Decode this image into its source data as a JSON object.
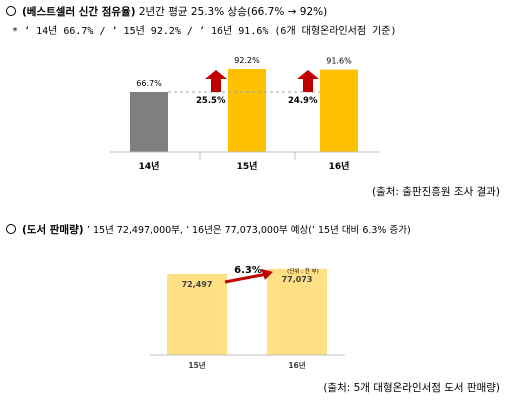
{
  "section1": {
    "heading": "(베스트셀러 신간 점유율)",
    "summary": "2년간 평균 25.3% 상승(66.7% → 92%)",
    "note": "* ’ 14년 66.7% / ’ 15년 92.2% / ’ 16년 91.6% (6개 대형온라인서점 기준)",
    "source": "(출처: 출판진흥원 조사 결과)"
  },
  "section2": {
    "heading": "(도서 판매량)",
    "summary": "’ 15년 72,497,000부, ’ 16년은 77,073,000부 예상(’ 15년 대비 6.3% 증가)",
    "source": "(출처: 5개 대형온라인서점 도서 판매량)"
  },
  "chart_data": [
    {
      "type": "bar",
      "categories": [
        "14년",
        "15년",
        "16년"
      ],
      "values": [
        66.7,
        92.2,
        91.6
      ],
      "value_labels": [
        "66.7%",
        "92.2%",
        "91.6%"
      ],
      "colors": [
        "#7f7f7f",
        "#ffc000",
        "#ffc000"
      ],
      "annotations": [
        {
          "between": [
            "14년",
            "15년"
          ],
          "label": "25.5%",
          "arrow_color": "#c00000"
        },
        {
          "between": [
            "15년",
            "16년"
          ],
          "label": "24.9%",
          "arrow_color": "#c00000"
        }
      ],
      "ylim": [
        0,
        100
      ]
    },
    {
      "type": "bar",
      "categories": [
        "15년",
        "16년"
      ],
      "values": [
        72497,
        77073
      ],
      "value_labels": [
        "72,497",
        "77,073"
      ],
      "colors": [
        "#ffe085",
        "#ffe085"
      ],
      "growth_label": "6.3%",
      "unit_label": "(단위 : 천 부)",
      "arrow_color": "#c00000",
      "ylim": [
        0,
        85000
      ]
    }
  ]
}
